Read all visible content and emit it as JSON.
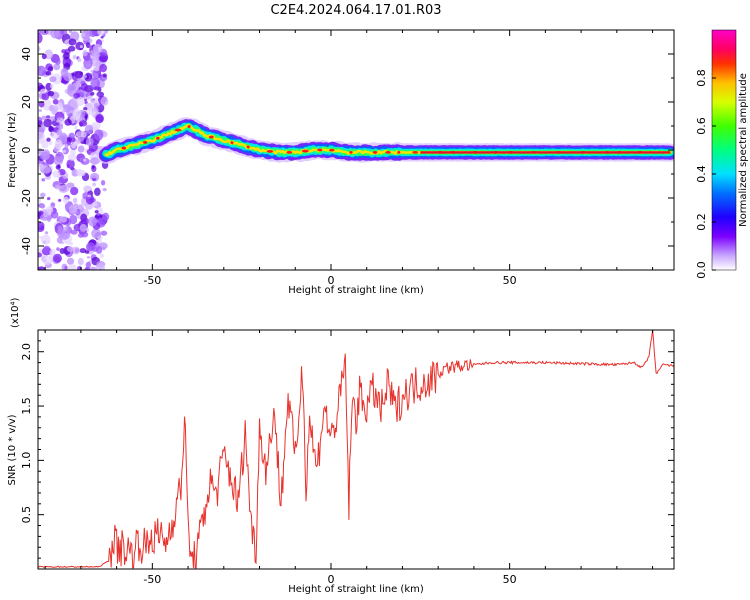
{
  "title": "C2E4.2024.064.17.01.R03",
  "chart_data": [
    {
      "type": "heatmap",
      "xlabel": "Height of straight line (km)",
      "ylabel": "Frequency (Hz)",
      "xlim": [
        -82,
        96
      ],
      "ylim": [
        -50,
        50
      ],
      "xticks": [
        -50,
        0,
        50
      ],
      "yticks": [
        -40,
        -20,
        0,
        20,
        40
      ],
      "grid": false,
      "colorbar": {
        "label": "Normalized spectral amplitude",
        "range": [
          0,
          1
        ],
        "ticks": [
          "0.0",
          "0.2",
          "0.4",
          "0.6",
          "0.8"
        ]
      },
      "noise_region_x": [
        -82,
        -63
      ],
      "ridge": {
        "x": [
          -63,
          -60,
          -55,
          -50,
          -45,
          -40,
          -35,
          -30,
          -25,
          -20,
          -15,
          -10,
          -5,
          0,
          5,
          10,
          20,
          30,
          40,
          50,
          60,
          70,
          80,
          90,
          95
        ],
        "freq": [
          -2,
          0,
          2,
          4,
          7,
          10,
          6,
          4,
          2,
          0,
          -1,
          -1,
          0,
          0,
          -1,
          -1,
          -1,
          -1,
          -1,
          -1,
          -1,
          -1,
          -1,
          -1,
          -1
        ]
      }
    },
    {
      "type": "line",
      "xlabel": "Height of straight line (km)",
      "ylabel": "SNR (10 * v/v)",
      "yscale_label": "(x10⁴)",
      "xlim": [
        -82,
        96
      ],
      "ylim": [
        0,
        2.2
      ],
      "xticks": [
        -50,
        0,
        50
      ],
      "yticks": [
        0.5,
        1.0,
        1.5,
        2.0
      ],
      "ytick_labels": [
        "0.5",
        "1.0",
        "1.5",
        "2.0"
      ],
      "grid": false,
      "series": [
        {
          "color": "#e8322c",
          "x": [
            -82,
            -75,
            -70,
            -65,
            -62,
            -61,
            -60,
            -58,
            -56,
            -54,
            -52,
            -50,
            -48,
            -46,
            -44,
            -42,
            -41,
            -40,
            -39,
            -38,
            -36,
            -34,
            -32,
            -30,
            -28,
            -26,
            -24,
            -22,
            -21,
            -20,
            -18,
            -16,
            -14,
            -12,
            -10,
            -8,
            -7,
            -6,
            -4,
            -2,
            0,
            2,
            4,
            5,
            6,
            7,
            8,
            10,
            12,
            14,
            16,
            18,
            20,
            24,
            28,
            32,
            36,
            40,
            45,
            50,
            55,
            60,
            70,
            80,
            85,
            87,
            89,
            90,
            91,
            93,
            96
          ],
          "y": [
            0.02,
            0.02,
            0.02,
            0.02,
            0.08,
            0.3,
            0.2,
            0.2,
            0.15,
            0.25,
            0.2,
            0.3,
            0.3,
            0.25,
            0.5,
            0.75,
            1.4,
            0.4,
            0.05,
            0.1,
            0.4,
            0.8,
            0.7,
            1.05,
            0.85,
            0.6,
            1.25,
            0.3,
            0.2,
            1.3,
            0.9,
            1.5,
            0.6,
            1.6,
            1.0,
            1.85,
            0.8,
            1.4,
            0.9,
            1.5,
            1.2,
            1.45,
            1.9,
            0.6,
            1.55,
            1.4,
            1.6,
            1.5,
            1.65,
            1.45,
            1.7,
            1.45,
            1.6,
            1.7,
            1.75,
            1.85,
            1.87,
            1.88,
            1.9,
            1.9,
            1.9,
            1.9,
            1.89,
            1.88,
            1.9,
            1.85,
            1.95,
            2.2,
            1.8,
            1.88,
            1.87
          ]
        }
      ]
    }
  ]
}
